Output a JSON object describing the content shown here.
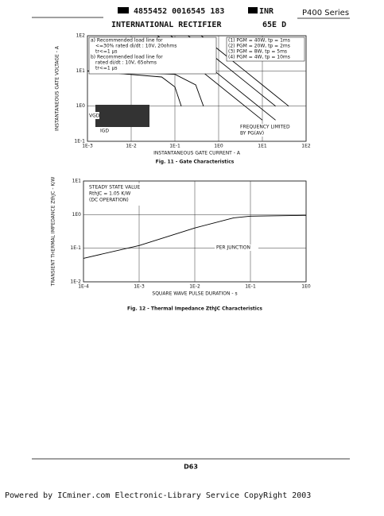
{
  "header": {
    "code": "4855452 0016545 183",
    "brand": "INR",
    "series": "P400 Series",
    "company": "INTERNATIONAL RECTIFIER",
    "ref": "65E D"
  },
  "chart_data": [
    {
      "type": "line",
      "title": "Fig. 11 - Gate Characteristics",
      "x_label": "INSTANTANEOUS GATE CURRENT - A",
      "y_label": "INSTANTANEOUS GATE VOLTAGE - A",
      "log_scale": true,
      "grid": true,
      "xlim": [
        0.001,
        100
      ],
      "ylim": [
        0.1,
        100
      ],
      "xticks": [
        {
          "value": 0.001,
          "label": "1E-3"
        },
        {
          "value": 0.01,
          "label": "1E-2"
        },
        {
          "value": 0.1,
          "label": "1E-1"
        },
        {
          "value": 1,
          "label": "1E0"
        },
        {
          "value": 10,
          "label": "1E1"
        },
        {
          "value": 100,
          "label": "1E2"
        }
      ],
      "yticks": [
        {
          "value": 0.1,
          "label": "1E-1"
        },
        {
          "value": 1,
          "label": "1E0"
        },
        {
          "value": 10,
          "label": "1E1"
        },
        {
          "value": 100,
          "label": "1E2"
        }
      ],
      "annotations": [
        "a) Recommended load line for",
        "<=30% rated di/dt : 10V, 20ohms",
        "tr<=1 µs",
        "b) Recommended load line for",
        "rated di/dt : 10V, 65ohms",
        "tr<=1 µs",
        "(1) PGM = 40W, tp = 1ms",
        "(2) PGM = 20W, tp = 2ms",
        "(3) PGM = 8W, tp = 5ms",
        "(4) PGM = 4W, tp = 10ms",
        "VGD",
        "IGD",
        "FREQUENCY LIMITED",
        "BY PG(AV)"
      ],
      "series": [
        {
          "name": "(a)",
          "color": "#000",
          "x": [
            0.001,
            0.1,
            0.3,
            0.45
          ],
          "y": [
            10,
            8,
            4,
            1
          ]
        },
        {
          "name": "(b)",
          "color": "#000",
          "x": [
            0.001,
            0.05,
            0.1,
            0.14
          ],
          "y": [
            10,
            6.7,
            3.5,
            1
          ]
        },
        {
          "name": "(1)",
          "color": "#000",
          "x": [
            0.4,
            1,
            4,
            10,
            40
          ],
          "y": [
            100,
            40,
            10,
            4,
            1
          ]
        },
        {
          "name": "(2)",
          "color": "#000",
          "x": [
            0.2,
            1,
            2,
            10,
            20
          ],
          "y": [
            100,
            20,
            10,
            2,
            1
          ]
        },
        {
          "name": "(3)",
          "color": "#000",
          "x": [
            0.08,
            0.8,
            8,
            20
          ],
          "y": [
            100,
            10,
            1,
            0.4
          ]
        },
        {
          "name": "(4)",
          "color": "#000",
          "x": [
            0.04,
            0.4,
            4,
            10
          ],
          "y": [
            100,
            10,
            1,
            0.4
          ]
        }
      ]
    },
    {
      "type": "line",
      "title": "Fig. 12 - Thermal Impedance ZthJC Characteristics",
      "x_label": "SQUARE WAVE PULSE DURATION - s",
      "y_label": "TRANSIENT THERMAL IMPEDANCE ZthJC - K/W",
      "log_scale": true,
      "grid": true,
      "xlim": [
        0.0001,
        1
      ],
      "ylim": [
        0.01,
        10
      ],
      "xticks": [
        {
          "value": 0.0001,
          "label": "1E-4"
        },
        {
          "value": 0.001,
          "label": "1E-3"
        },
        {
          "value": 0.01,
          "label": "1E-2"
        },
        {
          "value": 0.1,
          "label": "1E-1"
        },
        {
          "value": 1,
          "label": "1E0"
        }
      ],
      "yticks": [
        {
          "value": 0.01,
          "label": "1E-2"
        },
        {
          "value": 0.1,
          "label": "1E-1"
        },
        {
          "value": 1,
          "label": "1E0"
        },
        {
          "value": 10,
          "label": "1E1"
        }
      ],
      "annotations": [
        "STEADY STATE VALUE",
        "RthJC = 1.05 K/W",
        "(DC OPERATION)",
        "PER JUNCTION"
      ],
      "series": [
        {
          "name": "ZthJC",
          "color": "#000",
          "x": [
            0.0001,
            0.001,
            0.01,
            0.05,
            0.1,
            1
          ],
          "y": [
            0.05,
            0.12,
            0.4,
            0.8,
            0.9,
            0.95
          ]
        }
      ]
    }
  ],
  "footer": {
    "page": "D63",
    "credit": "Powered by ICminer.com Electronic-Library Service CopyRight 2003"
  }
}
